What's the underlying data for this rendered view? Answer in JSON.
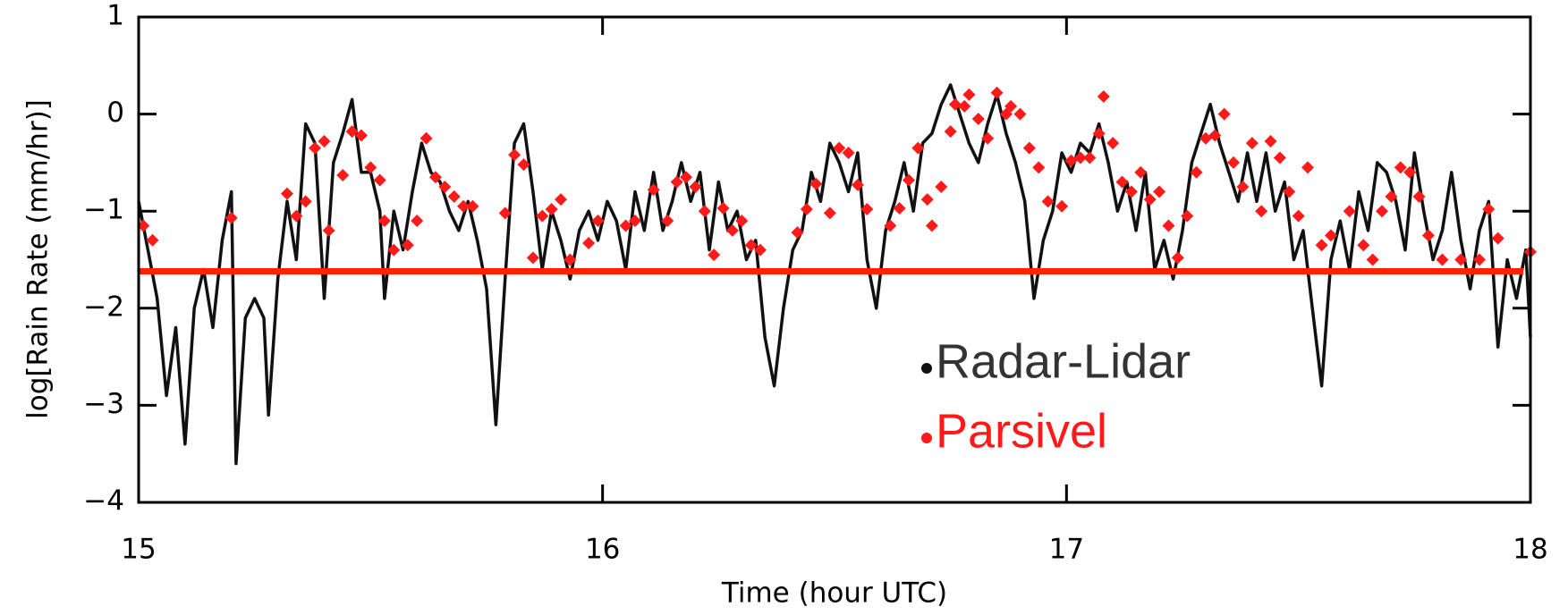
{
  "chart_data": {
    "type": "line",
    "xlabel": "Time (hour UTC)",
    "ylabel": "log[Rain Rate (mm/hr)]",
    "xlim": [
      15,
      18
    ],
    "ylim": [
      -4,
      1
    ],
    "xticks": [
      15,
      16,
      17,
      18
    ],
    "yticks": [
      {
        "value": -4,
        "label": "−4"
      },
      {
        "value": -3,
        "label": "−3"
      },
      {
        "value": -2,
        "label": "−2"
      },
      {
        "value": -1,
        "label": "−1"
      },
      0,
      1
    ],
    "hlines": [
      {
        "value": -1.62,
        "color": "#ff2200"
      }
    ],
    "series": [
      {
        "name": "Radar-Lidar",
        "color": "#111111",
        "style": "line",
        "x": [
          15.0,
          15.02,
          15.04,
          15.06,
          15.08,
          15.1,
          15.12,
          15.14,
          15.16,
          15.18,
          15.2,
          15.21,
          15.23,
          15.25,
          15.27,
          15.28,
          15.3,
          15.32,
          15.34,
          15.36,
          15.38,
          15.4,
          15.42,
          15.44,
          15.46,
          15.48,
          15.5,
          15.52,
          15.53,
          15.55,
          15.57,
          15.59,
          15.61,
          15.63,
          15.65,
          15.67,
          15.69,
          15.71,
          15.73,
          15.75,
          15.77,
          15.79,
          15.81,
          15.83,
          15.85,
          15.87,
          15.89,
          15.91,
          15.93,
          15.95,
          15.97,
          15.99,
          16.01,
          16.03,
          16.05,
          16.07,
          16.09,
          16.11,
          16.13,
          16.15,
          16.17,
          16.19,
          16.21,
          16.23,
          16.25,
          16.27,
          16.29,
          16.31,
          16.33,
          16.35,
          16.37,
          16.39,
          16.41,
          16.43,
          16.45,
          16.47,
          16.49,
          16.51,
          16.53,
          16.55,
          16.57,
          16.59,
          16.61,
          16.63,
          16.65,
          16.67,
          16.69,
          16.71,
          16.73,
          16.75,
          16.77,
          16.79,
          16.81,
          16.83,
          16.85,
          16.87,
          16.89,
          16.91,
          16.93,
          16.95,
          16.97,
          16.99,
          17.01,
          17.03,
          17.05,
          17.07,
          17.09,
          17.11,
          17.13,
          17.15,
          17.17,
          17.19,
          17.21,
          17.23,
          17.25,
          17.27,
          17.29,
          17.31,
          17.33,
          17.35,
          17.37,
          17.39,
          17.41,
          17.43,
          17.45,
          17.47,
          17.49,
          17.51,
          17.53,
          17.55,
          17.57,
          17.59,
          17.61,
          17.63,
          17.65,
          17.67,
          17.69,
          17.71,
          17.73,
          17.75,
          17.77,
          17.79,
          17.81,
          17.83,
          17.85,
          17.87,
          17.89,
          17.91,
          17.93,
          17.95,
          17.97,
          17.99,
          18.0
        ],
        "values": [
          -0.9,
          -1.4,
          -1.9,
          -2.9,
          -2.2,
          -3.4,
          -2.0,
          -1.6,
          -2.2,
          -1.3,
          -0.8,
          -3.6,
          -2.1,
          -1.9,
          -2.1,
          -3.1,
          -1.7,
          -0.9,
          -1.5,
          -0.1,
          -0.3,
          -1.9,
          -0.5,
          -0.2,
          0.15,
          -0.6,
          -0.6,
          -1.0,
          -1.9,
          -1.0,
          -1.4,
          -0.8,
          -0.3,
          -0.6,
          -0.7,
          -1.0,
          -1.2,
          -0.9,
          -1.3,
          -1.8,
          -3.2,
          -1.7,
          -0.3,
          -0.1,
          -0.8,
          -1.6,
          -1.0,
          -1.3,
          -1.7,
          -1.2,
          -1.0,
          -1.3,
          -0.9,
          -1.1,
          -1.6,
          -0.8,
          -1.2,
          -0.6,
          -1.2,
          -0.9,
          -0.5,
          -0.9,
          -0.6,
          -1.4,
          -0.7,
          -1.2,
          -1.0,
          -1.5,
          -1.3,
          -2.3,
          -2.8,
          -2.0,
          -1.4,
          -1.2,
          -0.6,
          -0.9,
          -0.3,
          -0.5,
          -0.8,
          -0.4,
          -1.5,
          -2.0,
          -1.2,
          -0.9,
          -0.5,
          -1.0,
          -0.3,
          -0.2,
          0.1,
          0.3,
          0.0,
          -0.3,
          -0.5,
          -0.1,
          0.2,
          -0.2,
          -0.5,
          -0.9,
          -1.9,
          -1.3,
          -1.0,
          -0.4,
          -0.6,
          -0.3,
          -0.4,
          -0.1,
          -0.5,
          -1.0,
          -0.7,
          -1.2,
          -0.6,
          -1.6,
          -1.3,
          -1.7,
          -1.2,
          -0.5,
          -0.2,
          0.1,
          -0.3,
          -0.6,
          -0.9,
          -0.4,
          -0.9,
          -0.4,
          -1.0,
          -0.7,
          -1.5,
          -1.2,
          -2.0,
          -2.8,
          -1.5,
          -1.1,
          -1.6,
          -0.8,
          -1.2,
          -0.5,
          -0.6,
          -0.9,
          -1.4,
          -0.4,
          -1.0,
          -1.5,
          -1.2,
          -0.6,
          -1.3,
          -1.8,
          -1.2,
          -0.9,
          -2.4,
          -1.5,
          -1.9,
          -1.4,
          -2.3
        ]
      },
      {
        "name": "Parsivel",
        "color": "#ff1a1a",
        "style": "diamond",
        "x": [
          15.01,
          15.03,
          15.2,
          15.32,
          15.34,
          15.36,
          15.38,
          15.4,
          15.41,
          15.44,
          15.46,
          15.48,
          15.5,
          15.52,
          15.53,
          15.55,
          15.58,
          15.6,
          15.62,
          15.64,
          15.66,
          15.68,
          15.7,
          15.72,
          15.79,
          15.81,
          15.83,
          15.85,
          15.87,
          15.89,
          15.91,
          15.93,
          15.97,
          15.99,
          16.05,
          16.07,
          16.11,
          16.14,
          16.16,
          16.18,
          16.2,
          16.22,
          16.24,
          16.26,
          16.28,
          16.3,
          16.32,
          16.34,
          16.42,
          16.44,
          16.46,
          16.49,
          16.51,
          16.53,
          16.55,
          16.57,
          16.62,
          16.64,
          16.66,
          16.68,
          16.7,
          16.71,
          16.73,
          16.75,
          16.76,
          16.78,
          16.79,
          16.81,
          16.83,
          16.85,
          16.87,
          16.88,
          16.9,
          16.92,
          16.94,
          16.96,
          16.99,
          17.01,
          17.03,
          17.05,
          17.07,
          17.08,
          17.1,
          17.12,
          17.14,
          17.16,
          17.18,
          17.2,
          17.22,
          17.24,
          17.26,
          17.28,
          17.3,
          17.32,
          17.34,
          17.36,
          17.38,
          17.4,
          17.42,
          17.44,
          17.46,
          17.48,
          17.5,
          17.52,
          17.55,
          17.57,
          17.61,
          17.64,
          17.66,
          17.68,
          17.7,
          17.72,
          17.74,
          17.76,
          17.78,
          17.81,
          17.85,
          17.89,
          17.91,
          17.93,
          18.0
        ],
        "values": [
          -1.15,
          -1.3,
          -1.07,
          -0.82,
          -1.05,
          -0.9,
          -0.35,
          -0.28,
          -1.2,
          -0.63,
          -0.18,
          -0.22,
          -0.55,
          -0.68,
          -1.1,
          -1.4,
          -1.35,
          -1.1,
          -0.25,
          -0.65,
          -0.75,
          -0.85,
          -0.95,
          -0.95,
          -1.02,
          -0.42,
          -0.52,
          -1.48,
          -1.05,
          -0.98,
          -0.88,
          -1.5,
          -1.33,
          -1.1,
          -1.15,
          -1.1,
          -0.78,
          -1.1,
          -0.7,
          -0.65,
          -0.75,
          -1.0,
          -1.45,
          -0.97,
          -1.2,
          -1.1,
          -1.35,
          -1.4,
          -1.22,
          -0.98,
          -0.72,
          -1.02,
          -0.35,
          -0.4,
          -0.73,
          -0.98,
          -1.15,
          -0.97,
          -0.68,
          -0.35,
          -0.88,
          -1.15,
          -0.75,
          -0.18,
          0.1,
          0.08,
          0.2,
          -0.05,
          -0.25,
          0.22,
          0.0,
          0.08,
          0.0,
          -0.35,
          -0.55,
          -0.9,
          -0.95,
          -0.48,
          -0.45,
          -0.45,
          -0.2,
          0.18,
          -0.3,
          -0.7,
          -0.8,
          -0.6,
          -0.88,
          -0.8,
          -1.15,
          -1.48,
          -1.05,
          -0.6,
          -0.25,
          -0.22,
          0.0,
          -0.5,
          -0.75,
          -0.3,
          -1.0,
          -0.28,
          -0.45,
          -0.8,
          -1.05,
          -0.55,
          -1.35,
          -1.25,
          -1.0,
          -1.35,
          -1.5,
          -1.0,
          -0.85,
          -0.55,
          -0.6,
          -0.85,
          -1.25,
          -1.5,
          -1.5,
          -1.5,
          -0.98,
          -1.28,
          -1.42
        ]
      }
    ]
  }
}
